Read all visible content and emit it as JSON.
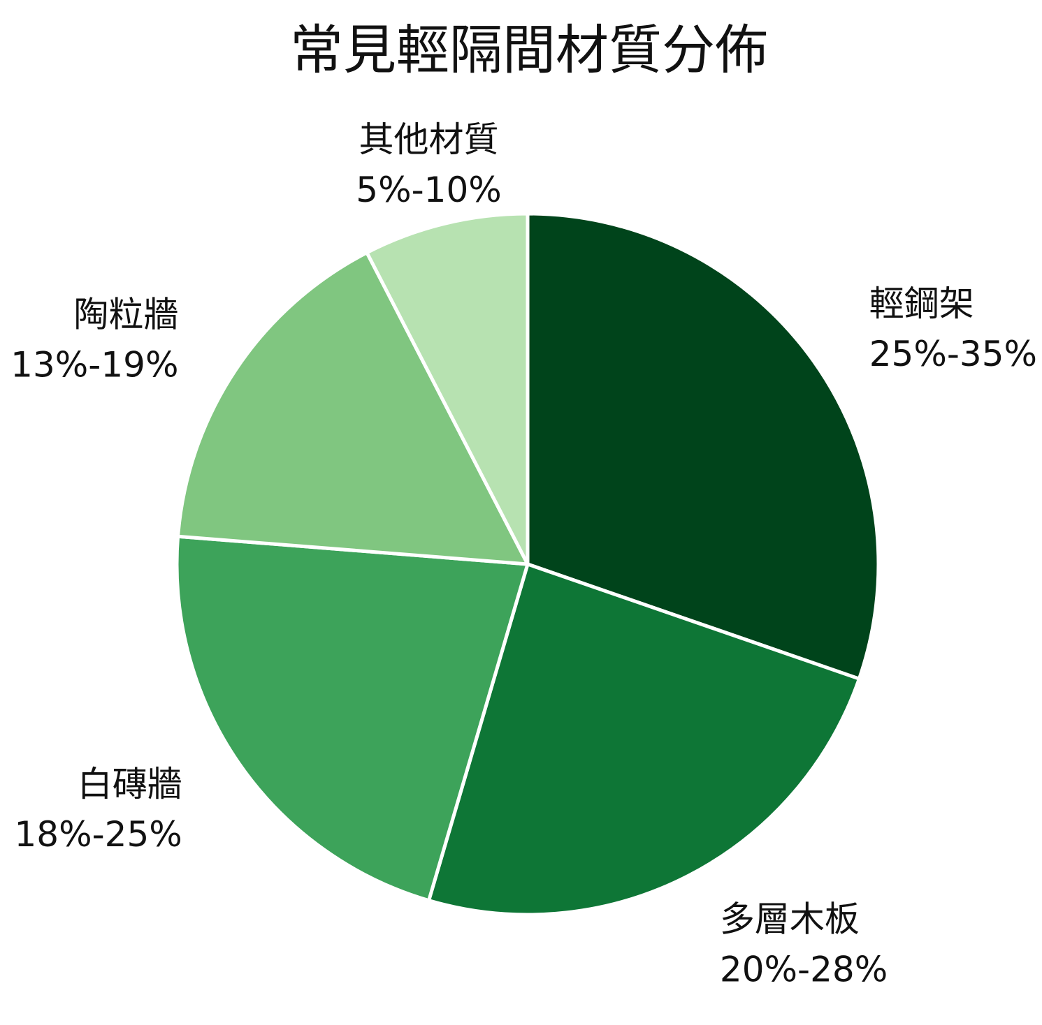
{
  "chart_data": {
    "type": "pie",
    "title": "常見輕隔間材質分佈",
    "start_angle_deg": 0,
    "direction": "clockwise",
    "edge_color": "#ffffff",
    "slices": [
      {
        "label": "輕鋼架",
        "range_text": "25%-35%",
        "value": 30,
        "color": "#00441b"
      },
      {
        "label": "多層木板",
        "range_text": "20%-28%",
        "value": 24,
        "color": "#0e7636"
      },
      {
        "label": "白磚牆",
        "range_text": "18%-25%",
        "value": 21.5,
        "color": "#3da35a"
      },
      {
        "label": "陶粒牆",
        "range_text": "13%-19%",
        "value": 16,
        "color": "#80c680"
      },
      {
        "label": "其他材質",
        "range_text": "5%-10%",
        "value": 7.5,
        "color": "#b7e2b1"
      }
    ]
  }
}
